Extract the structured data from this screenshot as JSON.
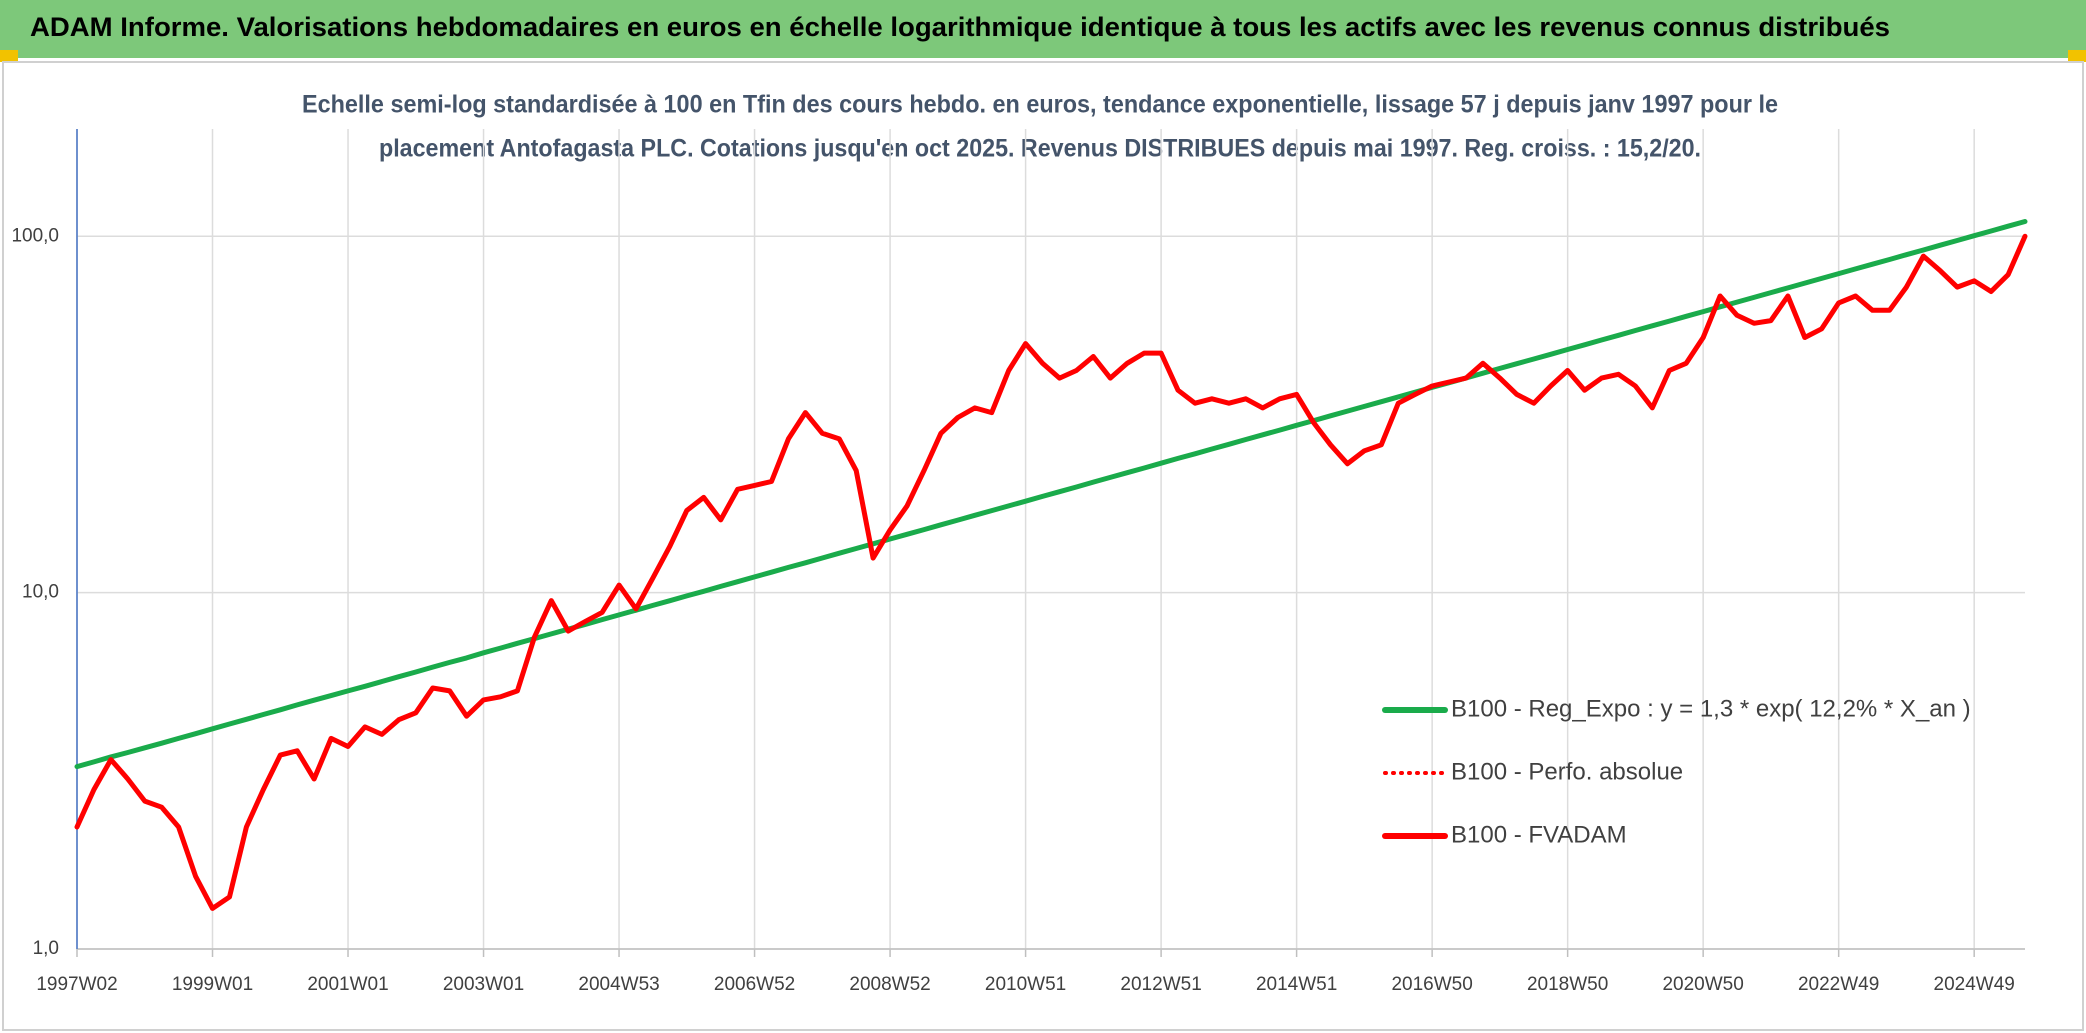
{
  "chart_data": {
    "type": "line",
    "title": "ADAM Informe. Valorisations hebdomadaires en euros en échelle logarithmique identique à tous les actifs avec les revenus connus distribués",
    "subtitle": [
      "Echelle semi-log standardisée à 100 en Tfin des cours hebdo. en euros, tendance exponentielle, lissage 57 j depuis janv 1997 pour le",
      "placement Antofagasta PLC. Cotations jusqu'en oct 2025. Revenus DISTRIBUES depuis mai 1997. Reg. croiss. : 15,2/20."
    ],
    "yscale": "log",
    "grid": true,
    "legend": "right",
    "ylim": [
      1,
      200
    ],
    "yticks": [
      {
        "value": 1,
        "label": "1,0"
      },
      {
        "value": 10,
        "label": "10,0"
      },
      {
        "value": 100,
        "label": "100,0"
      }
    ],
    "categories": [
      "1997W02",
      null,
      null,
      null,
      null,
      null,
      null,
      null,
      "1999W01",
      null,
      null,
      null,
      null,
      null,
      null,
      null,
      "2001W01",
      null,
      null,
      null,
      null,
      null,
      null,
      null,
      "2003W01",
      null,
      null,
      null,
      null,
      null,
      null,
      null,
      "2004W53",
      null,
      null,
      null,
      null,
      null,
      null,
      null,
      "2006W52",
      null,
      null,
      null,
      null,
      null,
      null,
      null,
      "2008W52",
      null,
      null,
      null,
      null,
      null,
      null,
      null,
      "2010W51",
      null,
      null,
      null,
      null,
      null,
      null,
      null,
      "2012W51",
      null,
      null,
      null,
      null,
      null,
      null,
      null,
      "2014W51",
      null,
      null,
      null,
      null,
      null,
      null,
      null,
      "2016W50",
      null,
      null,
      null,
      null,
      null,
      null,
      null,
      "2018W50",
      null,
      null,
      null,
      null,
      null,
      null,
      null,
      "2020W50",
      null,
      null,
      null,
      null,
      null,
      null,
      null,
      "2022W49",
      null,
      null,
      null,
      null,
      null,
      null,
      null,
      "2024W49",
      null,
      null,
      null
    ],
    "series": [
      {
        "name": "B100 - Reg_Expo : y = 1,3 * exp( 12,2% *  X_an )",
        "color": "#1aab4b",
        "style": "solid",
        "values": [
          3.25,
          3.35,
          3.46,
          3.56,
          3.67,
          3.78,
          3.9,
          4.02,
          4.15,
          4.28,
          4.41,
          4.55,
          4.69,
          4.84,
          4.99,
          5.14,
          5.3,
          5.46,
          5.63,
          5.81,
          5.99,
          6.18,
          6.37,
          6.56,
          6.78,
          6.99,
          7.21,
          7.43,
          7.66,
          7.9,
          8.14,
          8.4,
          8.66,
          8.93,
          9.21,
          9.49,
          9.79,
          10.09,
          10.41,
          10.73,
          11.07,
          11.41,
          11.77,
          12.13,
          12.51,
          12.9,
          13.3,
          13.71,
          14.14,
          14.58,
          15.03,
          15.5,
          15.98,
          16.48,
          16.99,
          17.51,
          18.06,
          18.62,
          19.2,
          19.79,
          20.42,
          21.05,
          21.71,
          22.38,
          23.08,
          23.8,
          24.53,
          25.3,
          26.08,
          26.89,
          27.72,
          28.59,
          29.48,
          30.39,
          31.34,
          32.31,
          33.32,
          34.35,
          35.42,
          36.52,
          37.66,
          38.83,
          40.03,
          41.28,
          42.57,
          43.89,
          45.25,
          46.66,
          48.12,
          49.61,
          51.15,
          52.74,
          54.39,
          56.08,
          57.82,
          59.61,
          61.48,
          63.39,
          65.35,
          67.38,
          69.49,
          71.65,
          73.87,
          76.17,
          78.55,
          80.99,
          83.5,
          86.09,
          88.78,
          91.54,
          94.38,
          97.31,
          100.35,
          103.5,
          106.7,
          110.0
        ]
      },
      {
        "name": "B100 - Perfo. absolue",
        "color": "#ff0000",
        "style": "dotted",
        "values": [
          2.2,
          2.8,
          3.4,
          3.0,
          2.6,
          2.5,
          2.2,
          1.6,
          1.3,
          1.4,
          2.2,
          2.8,
          3.5,
          3.6,
          3.0,
          3.9,
          3.7,
          4.2,
          4.0,
          4.4,
          4.6,
          5.4,
          5.3,
          4.5,
          5.0,
          5.1,
          5.3,
          7.5,
          9.5,
          7.8,
          8.3,
          8.8,
          10.5,
          9.0,
          11.0,
          13.5,
          17.0,
          18.5,
          16.0,
          19.5,
          20.0,
          20.5,
          27.0,
          32.0,
          28.0,
          27.0,
          22.0,
          12.5,
          15.0,
          17.5,
          22.0,
          28.0,
          31.0,
          33.0,
          32.0,
          42.0,
          50.0,
          44.0,
          40.0,
          42.0,
          46.0,
          40.0,
          44.0,
          47.0,
          47.0,
          37.0,
          34.0,
          35.0,
          34.0,
          35.0,
          33.0,
          35.0,
          36.0,
          30.0,
          26.0,
          23.0,
          25.0,
          26.0,
          34.0,
          36.0,
          38.0,
          39.0,
          40.0,
          44.0,
          40.0,
          36.0,
          34.0,
          38.0,
          42.0,
          37.0,
          40.0,
          41.0,
          38.0,
          33.0,
          42.0,
          44.0,
          52.0,
          68.0,
          60.0,
          57.0,
          58.0,
          68.0,
          52.0,
          55.0,
          65.0,
          68.0,
          62.0,
          62.0,
          72.0,
          88.0,
          80.0,
          72.0,
          75.0,
          70.0,
          78.0,
          100.0
        ]
      },
      {
        "name": "B100 - FVADAM",
        "color": "#ff0000",
        "style": "solid",
        "values": [
          2.2,
          2.8,
          3.4,
          3.0,
          2.6,
          2.5,
          2.2,
          1.6,
          1.3,
          1.4,
          2.2,
          2.8,
          3.5,
          3.6,
          3.0,
          3.9,
          3.7,
          4.2,
          4.0,
          4.4,
          4.6,
          5.4,
          5.3,
          4.5,
          5.0,
          5.1,
          5.3,
          7.5,
          9.5,
          7.8,
          8.3,
          8.8,
          10.5,
          9.0,
          11.0,
          13.5,
          17.0,
          18.5,
          16.0,
          19.5,
          20.0,
          20.5,
          27.0,
          32.0,
          28.0,
          27.0,
          22.0,
          12.5,
          15.0,
          17.5,
          22.0,
          28.0,
          31.0,
          33.0,
          32.0,
          42.0,
          50.0,
          44.0,
          40.0,
          42.0,
          46.0,
          40.0,
          44.0,
          47.0,
          47.0,
          37.0,
          34.0,
          35.0,
          34.0,
          35.0,
          33.0,
          35.0,
          36.0,
          30.0,
          26.0,
          23.0,
          25.0,
          26.0,
          34.0,
          36.0,
          38.0,
          39.0,
          40.0,
          44.0,
          40.0,
          36.0,
          34.0,
          38.0,
          42.0,
          37.0,
          40.0,
          41.0,
          38.0,
          33.0,
          42.0,
          44.0,
          52.0,
          68.0,
          60.0,
          57.0,
          58.0,
          68.0,
          52.0,
          55.0,
          65.0,
          68.0,
          62.0,
          62.0,
          72.0,
          88.0,
          80.0,
          72.0,
          75.0,
          70.0,
          78.0,
          100.0
        ]
      }
    ]
  }
}
